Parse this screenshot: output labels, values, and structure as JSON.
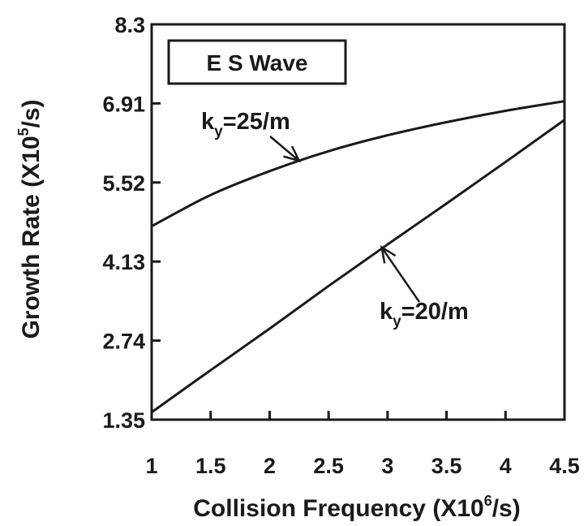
{
  "chart_data": {
    "type": "line",
    "xlabel": {
      "main": "Collision Frequency (X10",
      "sup": "6",
      "tail": "/s)"
    },
    "ylabel": {
      "main": "Growth Rate (X10",
      "sup": "5",
      "tail": "/s)"
    },
    "xlim": [
      1,
      4.5
    ],
    "ylim": [
      1.35,
      8.3
    ],
    "x_ticks": [
      1,
      1.5,
      2,
      2.5,
      3,
      3.5,
      4,
      4.5
    ],
    "x_tick_labels": [
      "1",
      "1.5",
      "2",
      "2.5",
      "3",
      "3.5",
      "4",
      "4.5"
    ],
    "y_ticks": [
      1.35,
      2.74,
      4.13,
      5.52,
      6.91,
      8.3
    ],
    "y_tick_labels": [
      "1.35",
      "2.74",
      "4.13",
      "5.52",
      "6.91",
      "8.3"
    ],
    "grid": false,
    "legend": {
      "text": "E S Wave",
      "placement": "top-left"
    },
    "series": [
      {
        "x": [
          1,
          1.5,
          2,
          2.5,
          3,
          3.5,
          4,
          4.5
        ],
        "y": [
          4.75,
          5.3,
          5.72,
          6.07,
          6.35,
          6.58,
          6.78,
          6.95
        ]
      },
      {
        "x": [
          1,
          1.5,
          2,
          2.5,
          3,
          3.5,
          4,
          4.5
        ],
        "y": [
          1.48,
          2.22,
          2.95,
          3.7,
          4.43,
          5.15,
          5.88,
          6.62
        ]
      }
    ],
    "annotations": [
      {
        "main": "k",
        "sub": "y",
        "tail": "=25/m",
        "series_index": 0,
        "target_x": 2.25,
        "target_y": 5.9
      },
      {
        "main": "k",
        "sub": "y",
        "tail": "=20/m",
        "series_index": 1,
        "target_x": 2.95,
        "target_y": 4.38
      }
    ]
  }
}
